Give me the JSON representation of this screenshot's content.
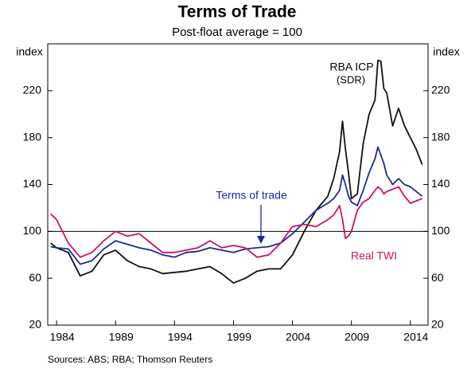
{
  "chart_data": {
    "type": "line",
    "title": "Terms of Trade",
    "subtitle": "Post-float average = 100",
    "y_label": "index",
    "y2_label": "index",
    "source": "Sources:   ABS; RBA; Thomson Reuters",
    "annotations": [
      "RBA ICP",
      "(SDR)",
      "Terms of trade",
      "Real TWI"
    ],
    "x": [
      1983.5,
      1984,
      1985,
      1986,
      1987,
      1988,
      1989,
      1990,
      1991,
      1992,
      1993,
      1994,
      1995,
      1996,
      1997,
      1998,
      1999,
      2000,
      2001,
      2002,
      2003,
      2004,
      2005,
      2006,
      2007,
      2007.5,
      2008,
      2008.25,
      2008.5,
      2008.75,
      2009,
      2009.5,
      2010,
      2010.5,
      2011,
      2011.25,
      2011.5,
      2011.75,
      2012,
      2012.5,
      2013,
      2013.5,
      2014,
      2014.5,
      2015
    ],
    "series": [
      {
        "name": "RBA ICP",
        "color": "#111111",
        "values": [
          90,
          86,
          82,
          62,
          66,
          80,
          84,
          75,
          70,
          68,
          64,
          65,
          66,
          68,
          70,
          64,
          56,
          60,
          66,
          68,
          68,
          80,
          100,
          118,
          130,
          145,
          168,
          194,
          170,
          150,
          128,
          132,
          175,
          200,
          212,
          246,
          245,
          222,
          218,
          190,
          205,
          190,
          180,
          170,
          157
        ]
      },
      {
        "name": "Terms of trade",
        "color": "#1a2a9e",
        "values": [
          87,
          86,
          85,
          72,
          75,
          85,
          92,
          89,
          86,
          84,
          80,
          78,
          82,
          83,
          86,
          84,
          82,
          85,
          86,
          87,
          90,
          98,
          108,
          118,
          124,
          128,
          135,
          148,
          140,
          130,
          125,
          122,
          135,
          150,
          162,
          172,
          165,
          158,
          148,
          140,
          145,
          140,
          138,
          134,
          130
        ]
      },
      {
        "name": "Real TWI",
        "color": "#cc1166",
        "values": [
          115,
          110,
          90,
          78,
          82,
          92,
          100,
          96,
          98,
          90,
          82,
          82,
          84,
          86,
          92,
          86,
          88,
          86,
          78,
          80,
          90,
          104,
          106,
          104,
          110,
          114,
          122,
          110,
          94,
          96,
          100,
          118,
          125,
          128,
          135,
          138,
          136,
          132,
          134,
          136,
          138,
          130,
          124,
          126,
          128
        ]
      }
    ],
    "xlim": [
      1983.25,
      2015.5
    ],
    "xticks": [
      1984,
      1989,
      1994,
      1999,
      2004,
      2009,
      2014
    ],
    "ylim": [
      20,
      260
    ],
    "yticks": [
      20,
      60,
      100,
      140,
      180,
      220
    ],
    "y2lim": [
      20,
      260
    ],
    "y2ticks": [
      20,
      60,
      100,
      140,
      180,
      220
    ],
    "hline": 100
  }
}
